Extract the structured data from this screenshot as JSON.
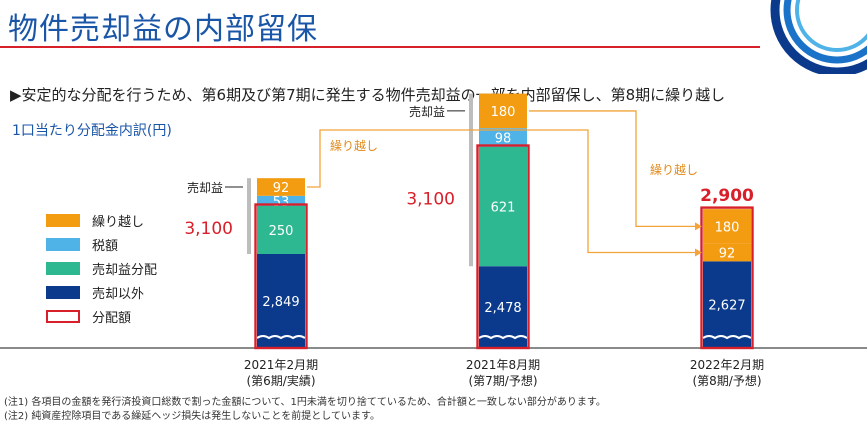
{
  "header": {
    "title": "物件売却益の内部留保",
    "subtitle": "▶安定的な分配を行うため、第6期及び第7期に発生する物件売却益の一部を内部留保し、第8期に繰り越し",
    "subheading": "1口当たり分配金内訳(円)"
  },
  "notes": [
    "(注1) 各項目の金額を発行済投資口総数で割った金額について、1円未満を切り捨てているため、合計額と一致しない部分があります。",
    "(注2) 純資産控除項目である繰延ヘッジ損失は発生しないことを前提としています。"
  ],
  "colors": {
    "carryover": "#f39c12",
    "tax": "#4fb3e8",
    "gain_distribution": "#2eb891",
    "non_sale": "#0b3a8c",
    "distribution_outline": "#d8202a",
    "accent_blue": "#1a56a8",
    "arrow": "#f3a33a"
  },
  "chart_data": {
    "type": "bar",
    "stacked": true,
    "categories": [
      {
        "line1": "2021年2月期",
        "line2": "(第6期/実績)"
      },
      {
        "line1": "2021年8月期",
        "line2": "(第7期/予想)"
      },
      {
        "line1": "2022年2月期",
        "line2": "(第8期/予想)"
      }
    ],
    "legend": [
      {
        "key": "carryover",
        "label": "繰り越し"
      },
      {
        "key": "tax",
        "label": "税額"
      },
      {
        "key": "gain_distribution",
        "label": "売却益分配"
      },
      {
        "key": "non_sale",
        "label": "売却以外"
      },
      {
        "key": "distribution_outline",
        "label": "分配額"
      }
    ],
    "bars": [
      {
        "segments": [
          {
            "key": "non_sale",
            "value": 2849,
            "label": "2,849"
          },
          {
            "key": "gain_distribution",
            "value": 250,
            "label": "250"
          },
          {
            "key": "tax",
            "value": 53,
            "label": "53"
          },
          {
            "key": "carryover",
            "value": 92,
            "label": "92"
          }
        ],
        "distribution": 3100,
        "distribution_label": "3,100",
        "bracket_label": "売却益"
      },
      {
        "segments": [
          {
            "key": "non_sale",
            "value": 2478,
            "label": "2,478"
          },
          {
            "key": "gain_distribution",
            "value": 621,
            "label": "621"
          },
          {
            "key": "tax",
            "value": 98,
            "label": "98"
          },
          {
            "key": "carryover",
            "value": 180,
            "label": "180"
          }
        ],
        "distribution": 3100,
        "distribution_label": "3,100",
        "bracket_label": "売却益"
      },
      {
        "segments": [
          {
            "key": "non_sale",
            "value": 2627,
            "label": "2,627"
          },
          {
            "key": "carryover",
            "value": 92,
            "label": "92"
          },
          {
            "key": "carryover",
            "value": 180,
            "label": "180"
          }
        ],
        "distribution": 2900,
        "distribution_label": "2,900"
      }
    ],
    "arrows": [
      {
        "from_bar": 0,
        "label": "繰り越し"
      },
      {
        "from_bar": 1,
        "label": "繰り越し"
      }
    ]
  }
}
